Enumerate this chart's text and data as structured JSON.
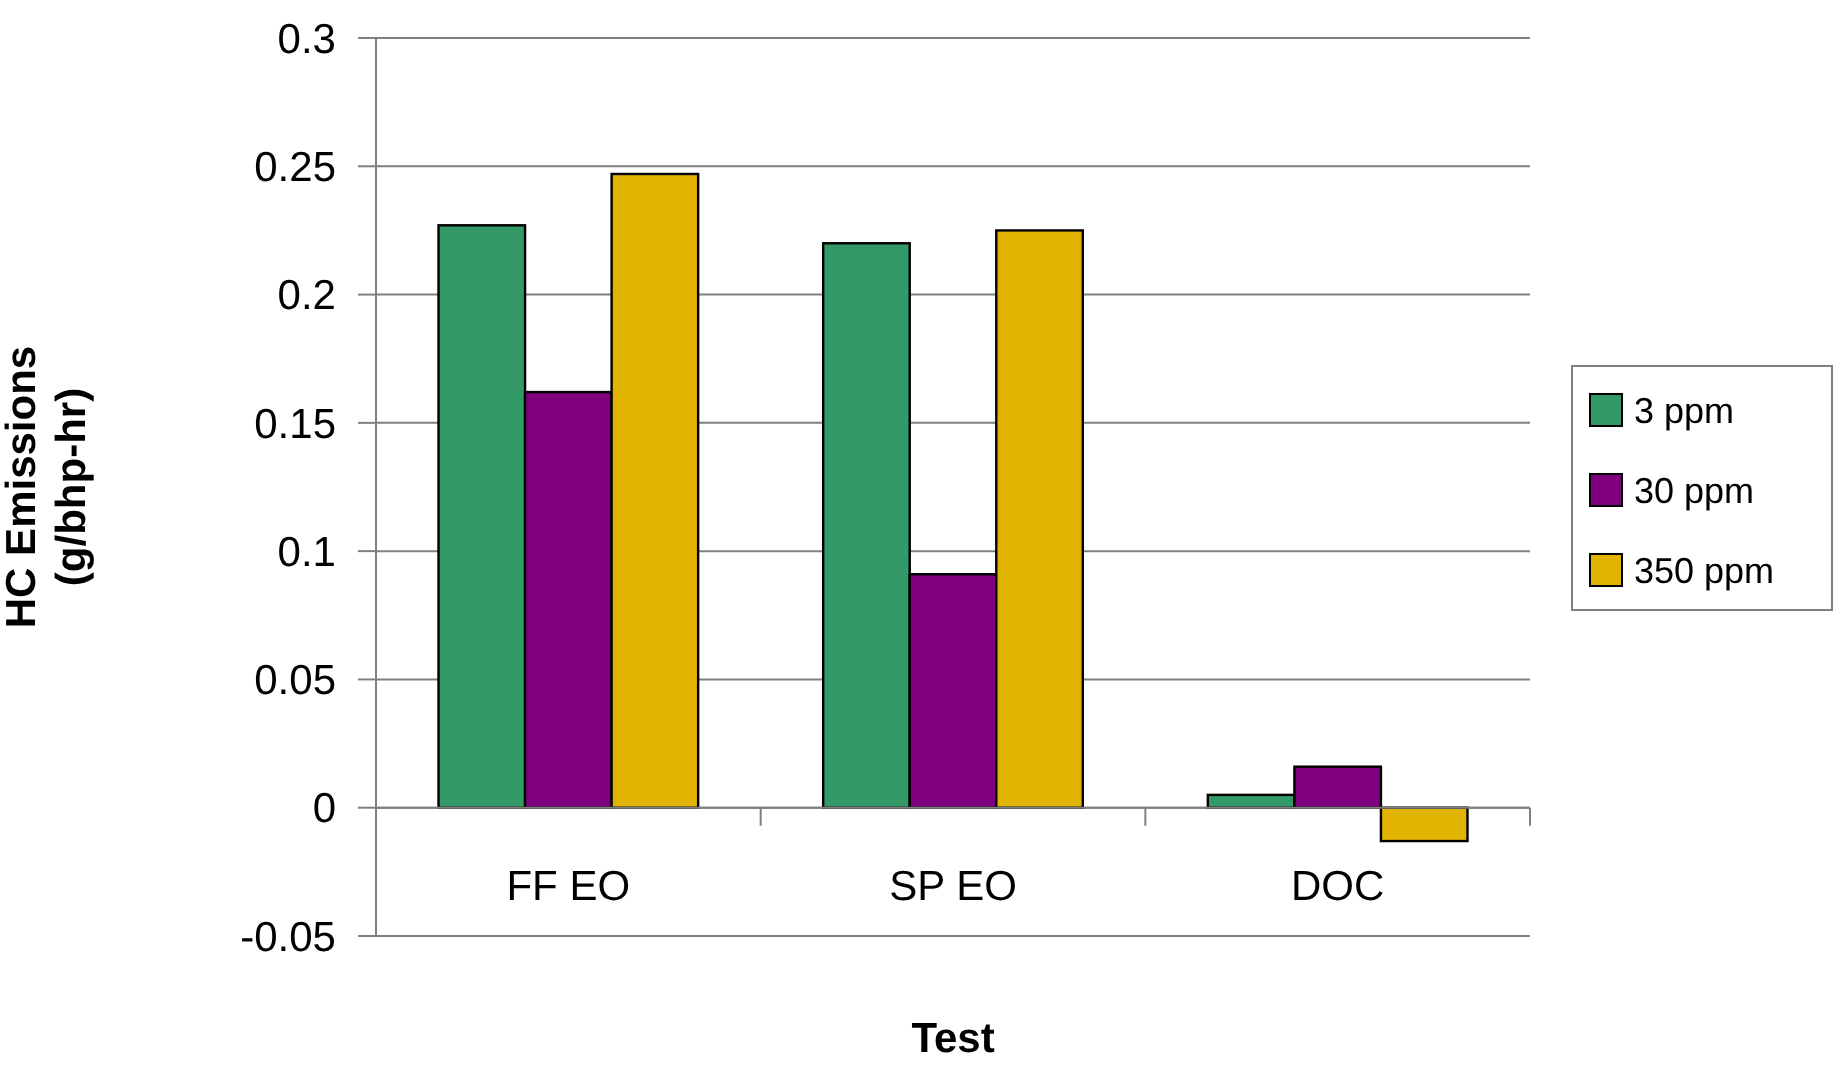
{
  "chart_data": {
    "type": "bar",
    "xlabel": "Test",
    "ylabel": "HC Emissions\n(g/bhp-hr)",
    "categories": [
      "FF EO",
      "SP EO",
      "DOC"
    ],
    "series": [
      {
        "name": "3 ppm",
        "color": "#339966",
        "values": [
          0.227,
          0.22,
          0.005
        ]
      },
      {
        "name": "30 ppm",
        "color": "#800080",
        "values": [
          0.162,
          0.091,
          0.016
        ]
      },
      {
        "name": "350 ppm",
        "color": "#e0b400",
        "values": [
          0.247,
          0.225,
          -0.013
        ]
      }
    ],
    "ylim": [
      -0.05,
      0.3
    ],
    "yticks": [
      -0.05,
      0,
      0.05,
      0.1,
      0.15,
      0.2,
      0.25,
      0.3
    ],
    "grid": "y",
    "legend": "right"
  }
}
